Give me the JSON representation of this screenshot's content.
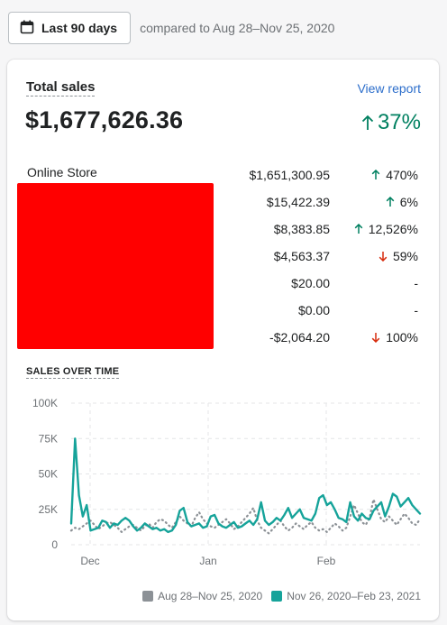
{
  "date_picker": {
    "label": "Last 90 days",
    "compare_text": "compared to Aug 28–Nov 25, 2020"
  },
  "card": {
    "title": "Total sales",
    "view_report": "View report",
    "total": "$1,677,626.36",
    "total_change": "37%",
    "total_direction": "up",
    "first_channel": "Online Store",
    "rows": [
      {
        "value": "$1,651,300.95",
        "change": "470%",
        "direction": "up"
      },
      {
        "value": "$15,422.39",
        "change": "6%",
        "direction": "up"
      },
      {
        "value": "$8,383.85",
        "change": "12,526%",
        "direction": "up"
      },
      {
        "value": "$4,563.37",
        "change": "59%",
        "direction": "down"
      },
      {
        "value": "$20.00",
        "change": "-",
        "direction": "none"
      },
      {
        "value": "$0.00",
        "change": "-",
        "direction": "none"
      },
      {
        "value": "-$2,064.20",
        "change": "100%",
        "direction": "down"
      }
    ]
  },
  "chart_data": {
    "type": "line",
    "title": "SALES OVER TIME",
    "y_ticks": [
      "100K",
      "75K",
      "50K",
      "25K",
      "0"
    ],
    "x_ticks": [
      "Dec",
      "Jan",
      "Feb"
    ],
    "ylim": [
      0,
      100000
    ],
    "grid": "dashed",
    "legend_position": "bottom-right",
    "series": [
      {
        "name": "Aug 28–Nov 25, 2020",
        "color": "#8c9196",
        "style": "dotted",
        "values": [
          10000,
          12000,
          11000,
          13000,
          15000,
          17000,
          14000,
          11000,
          13000,
          15000,
          16000,
          14000,
          12000,
          9000,
          11000,
          13000,
          14000,
          12000,
          10000,
          13000,
          15000,
          12000,
          16000,
          18000,
          17000,
          14000,
          12000,
          16000,
          20000,
          17000,
          15000,
          13000,
          19000,
          23000,
          18000,
          15000,
          13000,
          12000,
          14000,
          16000,
          18000,
          15000,
          11000,
          13000,
          16000,
          19000,
          22000,
          26000,
          17000,
          12000,
          10000,
          8000,
          11000,
          14000,
          17000,
          13000,
          10000,
          12000,
          15000,
          13000,
          11000,
          14000,
          16000,
          12000,
          10000,
          11000,
          9000,
          12000,
          15000,
          13000,
          10000,
          12000,
          20000,
          28000,
          22000,
          16000,
          14000,
          19000,
          32000,
          25000,
          18000,
          16000,
          20000,
          17000,
          14000,
          18000,
          22000,
          19000,
          15000,
          14000,
          18000
        ]
      },
      {
        "name": "Nov 26, 2020–Feb 23, 2021",
        "color": "#16a39a",
        "style": "solid",
        "values": [
          15000,
          75000,
          35000,
          20000,
          28000,
          10000,
          11000,
          12000,
          17000,
          16000,
          12000,
          15000,
          14000,
          17000,
          19000,
          17000,
          13000,
          10000,
          12000,
          15000,
          13000,
          11000,
          12000,
          10000,
          11000,
          9000,
          10000,
          14000,
          24000,
          26000,
          16000,
          13000,
          14000,
          15000,
          12000,
          13000,
          20000,
          21000,
          15000,
          13000,
          12000,
          14000,
          16000,
          12000,
          13000,
          15000,
          17000,
          14000,
          18000,
          30000,
          17000,
          14000,
          16000,
          19000,
          17000,
          21000,
          26000,
          19000,
          22000,
          25000,
          19000,
          18000,
          17000,
          22000,
          33000,
          35000,
          28000,
          30000,
          25000,
          19000,
          18000,
          16000,
          30000,
          20000,
          17000,
          22000,
          19000,
          18000,
          24000,
          27000,
          30000,
          20000,
          27000,
          36000,
          34000,
          27000,
          30000,
          33000,
          28000,
          25000,
          22000
        ]
      }
    ]
  }
}
